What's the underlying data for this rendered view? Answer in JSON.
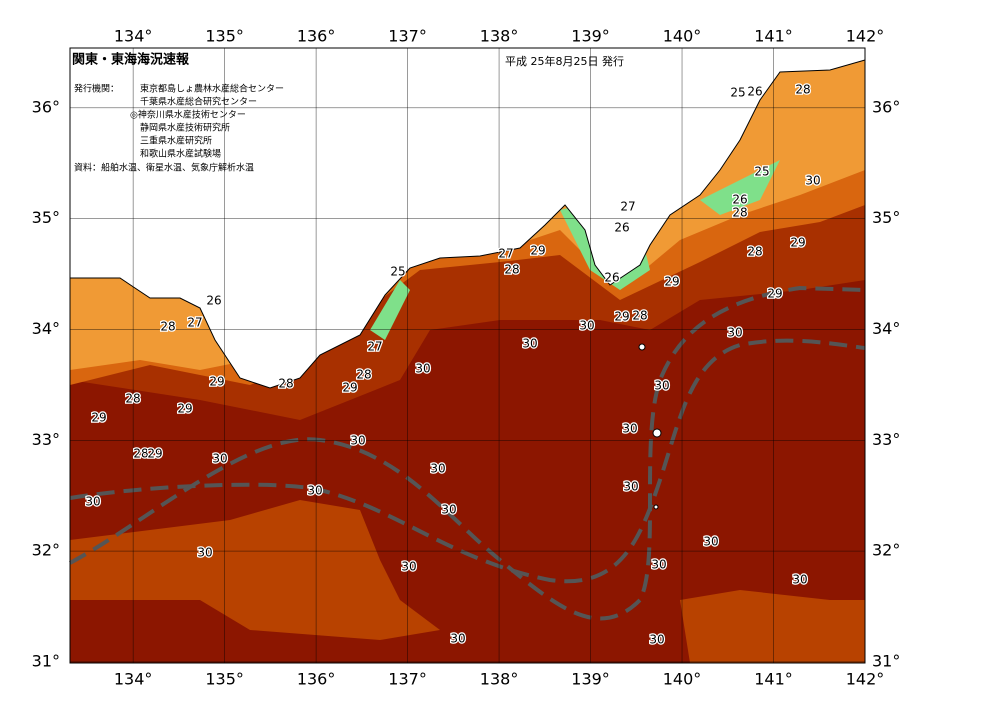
{
  "header": {
    "title": "関東・東海海況速報",
    "date": "平成 25年8月25日 発行",
    "issuer_label": "発行機関：",
    "issuers": [
      "東京都島しょ農林水産総合センター",
      "千葉県水産総合研究センター",
      "◎神奈川県水産技術センター",
      "静岡県水産技術研究所",
      "三重県水産研究所",
      "和歌山県水産試験場"
    ],
    "source": "資料：船舶水温、衛星水温、気象庁解析水温"
  },
  "map": {
    "xlim": [
      133.31,
      142
    ],
    "ylim": [
      30.99,
      36.54
    ],
    "xticks": [
      {
        "value": 134,
        "label": "134°"
      },
      {
        "value": 135,
        "label": "135°"
      },
      {
        "value": 136,
        "label": "136°"
      },
      {
        "value": 137,
        "label": "137°"
      },
      {
        "value": 138,
        "label": "138°"
      },
      {
        "value": 139,
        "label": "139°"
      },
      {
        "value": 140,
        "label": "140°"
      },
      {
        "value": 141,
        "label": "141°"
      },
      {
        "value": 142,
        "label": "142°"
      }
    ],
    "yticks": [
      {
        "value": 31,
        "label": "31°"
      },
      {
        "value": 32,
        "label": "32°"
      },
      {
        "value": 33,
        "label": "33°"
      },
      {
        "value": 34,
        "label": "34°"
      },
      {
        "value": 35,
        "label": "35°"
      },
      {
        "value": 36,
        "label": "36°"
      }
    ],
    "contour_labels": [
      30,
      30,
      30,
      30,
      30,
      30,
      30,
      30,
      30,
      30,
      30,
      30,
      30,
      30,
      30,
      30,
      30,
      30,
      30,
      30,
      30,
      29,
      29,
      29,
      29,
      29,
      29,
      29,
      29,
      29,
      28,
      28,
      29,
      28,
      28,
      28,
      28,
      28,
      28,
      28,
      28,
      27,
      27,
      27,
      27,
      26,
      26,
      26,
      26,
      26,
      25,
      25,
      25
    ]
  }
}
